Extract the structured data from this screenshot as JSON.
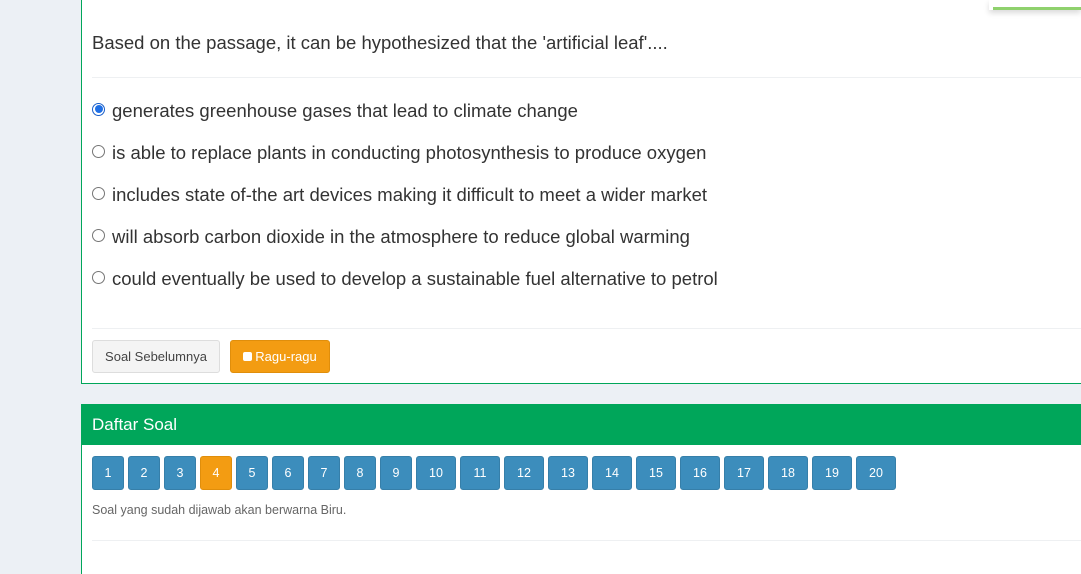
{
  "question": {
    "text": "Based on the passage, it can be hypothesized that the 'artificial leaf'....",
    "options": [
      {
        "label": "generates greenhouse gases that lead to climate change",
        "selected": true
      },
      {
        "label": "is able to replace plants in conducting photosynthesis to produce oxygen",
        "selected": false
      },
      {
        "label": "includes state of-the art devices making it difficult to meet a wider market",
        "selected": false
      },
      {
        "label": "will absorb carbon dioxide in the atmosphere to reduce global warming",
        "selected": false
      },
      {
        "label": "could eventually be used to develop a sustainable fuel alternative to petrol",
        "selected": false
      }
    ],
    "prev_button_label": "Soal Sebelumnya",
    "doubt_button_label": "Ragu-ragu"
  },
  "question_list": {
    "title": "Daftar Soal",
    "numbers": [
      "1",
      "2",
      "3",
      "4",
      "5",
      "6",
      "7",
      "8",
      "9",
      "10",
      "11",
      "12",
      "13",
      "14",
      "15",
      "16",
      "17",
      "18",
      "19",
      "20"
    ],
    "current": "4",
    "note": "Soal yang sudah dijawab akan berwarna Biru."
  },
  "colors": {
    "accent_green": "#00a65a",
    "number_blue": "#3c8dbc",
    "warning_orange": "#f39c12"
  }
}
